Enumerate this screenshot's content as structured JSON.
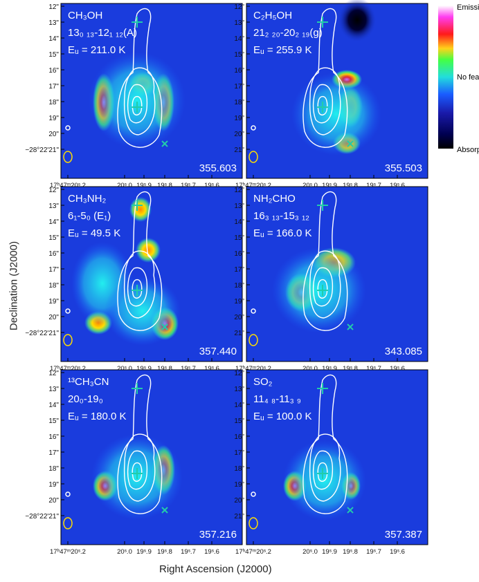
{
  "figure": {
    "y_axis_label": "Declination (J2000)",
    "x_axis_label": "Right Ascension (J2000)",
    "colorbar": {
      "top_label": "Emission",
      "mid_label": "No feature",
      "bottom_label": "Absorption"
    }
  },
  "chart_data": [
    {
      "type": "heatmap",
      "molecule": "CH₃OH",
      "transition": "13₀ ₁₃-12₁ ₁₂(A)",
      "energy": "Eᵤ = 211.0 K",
      "frequency": "355.603",
      "dec_ticks": [
        "12\"",
        "13\"",
        "14\"",
        "15\"",
        "16\"",
        "17\"",
        "18\"",
        "19\"",
        "20\"",
        "−28°22'21\""
      ],
      "ra_ticks": [
        "17ʰ47ᵐ20ˢ.2",
        "20ˢ.0",
        "19ˢ.9",
        "19ˢ.8",
        "19ˢ.7",
        "19ˢ.6"
      ]
    },
    {
      "type": "heatmap",
      "molecule": "C₂H₅OH",
      "transition": "21₂ ₂₀-20₂ ₁₉(g)",
      "energy": "Eᵤ = 255.9 K",
      "frequency": "355.503",
      "dec_ticks": [
        "12\"",
        "13\"",
        "14\"",
        "15\"",
        "16\"",
        "17\"",
        "18\"",
        "19\"",
        "20\"",
        "21\""
      ],
      "ra_ticks": [
        "17ʰ47ᵐ20ˢ.2",
        "20ˢ.0",
        "19ˢ.9",
        "19ˢ.8",
        "19ˢ.7",
        "19ˢ.6"
      ]
    },
    {
      "type": "heatmap",
      "molecule": "CH₃NH₂",
      "transition": "6₁-5₀ (E₁)",
      "energy": "Eᵤ = 49.5 K",
      "frequency": "357.440",
      "dec_ticks": [
        "12\"",
        "13\"",
        "14\"",
        "15\"",
        "16\"",
        "17\"",
        "18\"",
        "19\"",
        "20\"",
        "−28°22'21\""
      ],
      "ra_ticks": [
        "17ʰ47ᵐ20ˢ.2",
        "20ˢ.0",
        "19ˢ.9",
        "19ˢ.8",
        "19ˢ.7",
        "19ˢ.6"
      ]
    },
    {
      "type": "heatmap",
      "molecule": "NH₂CHO",
      "transition": "16₃ ₁₃-15₃ ₁₂",
      "energy": "Eᵤ = 166.0 K",
      "frequency": "343.085",
      "dec_ticks": [
        "12\"",
        "13\"",
        "14\"",
        "15\"",
        "16\"",
        "17\"",
        "18\"",
        "19\"",
        "20\"",
        "21\""
      ],
      "ra_ticks": [
        "17ʰ47ᵐ20ˢ.2",
        "20ˢ.0",
        "19ˢ.9",
        "19ˢ.8",
        "19ˢ.7",
        "19ˢ.6"
      ]
    },
    {
      "type": "heatmap",
      "molecule": "¹³CH₃CN",
      "transition": "20₀-19₀",
      "energy": "Eᵤ = 180.0 K",
      "frequency": "357.216",
      "dec_ticks": [
        "12\"",
        "13\"",
        "14\"",
        "15\"",
        "16\"",
        "17\"",
        "18\"",
        "19\"",
        "20\"",
        "−28°22'21\""
      ],
      "ra_ticks": [
        "17ʰ47ᵐ20ˢ.2",
        "20ˢ.0",
        "19ˢ.9",
        "19ˢ.8",
        "19ˢ.7",
        "19ˢ.6"
      ]
    },
    {
      "type": "heatmap",
      "molecule": "SO₂",
      "transition": "11₄ ₈-11₃ ₉",
      "energy": "Eᵤ = 100.0 K",
      "frequency": "357.387",
      "dec_ticks": [
        "12\"",
        "13\"",
        "14\"",
        "15\"",
        "16\"",
        "17\"",
        "18\"",
        "19\"",
        "20\"",
        "21\""
      ],
      "ra_ticks": [
        "17ʰ47ᵐ20ˢ.2",
        "20ˢ.0",
        "19ˢ.9",
        "19ˢ.8",
        "19ˢ.7",
        "19ˢ.6"
      ]
    }
  ]
}
